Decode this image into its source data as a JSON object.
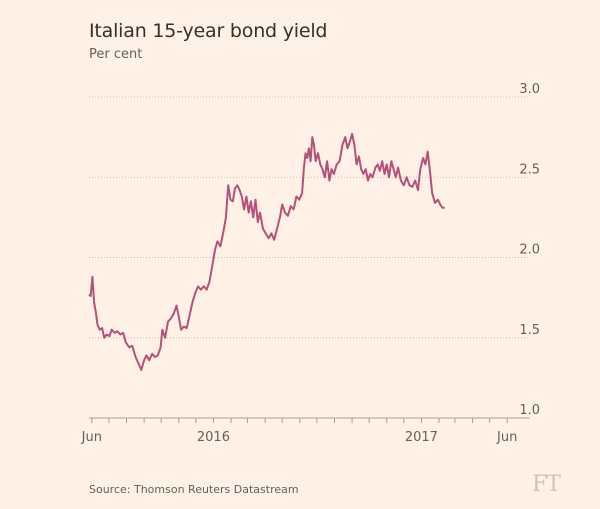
{
  "colors": {
    "background": "#fff1e5",
    "line": "#b5507a",
    "grid": "#c9bfb5",
    "text": "#33302e",
    "muted": "#66605c"
  },
  "source": "Source: Thomson Reuters Datastream",
  "logo": "FT",
  "chart_data": {
    "type": "line",
    "title": "Italian 15-year bond yield",
    "subtitle": "Per cent",
    "xlabel": "",
    "ylabel": "",
    "ylim": [
      1.0,
      3.0
    ],
    "xlim": [
      "2015-05-27",
      "2017-06-20"
    ],
    "grid": "horizontal-dotted",
    "y_ticks": [
      {
        "value": 1.0,
        "label": "1.0"
      },
      {
        "value": 1.5,
        "label": "1.5"
      },
      {
        "value": 2.0,
        "label": "2.0"
      },
      {
        "value": 2.5,
        "label": "2.5"
      },
      {
        "value": 3.0,
        "label": "3.0"
      }
    ],
    "x_tick_labels": [
      {
        "date": "2015-06-01",
        "label": "Jun"
      },
      {
        "date": "2016-01-01",
        "label": "2016"
      },
      {
        "date": "2017-01-01",
        "label": "2017"
      },
      {
        "date": "2017-06-01",
        "label": "Jun"
      }
    ],
    "x_tick_marks": [
      "2015-06-01",
      "2015-07-01",
      "2015-08-01",
      "2015-09-01",
      "2015-10-01",
      "2015-11-01",
      "2015-12-01",
      "2016-01-01",
      "2016-02-01",
      "2016-03-01",
      "2016-04-01",
      "2016-05-01",
      "2016-06-01",
      "2016-07-01",
      "2016-08-01",
      "2016-09-01",
      "2016-10-01",
      "2016-11-01",
      "2016-12-01",
      "2017-01-01",
      "2017-02-01",
      "2017-03-01",
      "2017-04-01",
      "2017-05-01",
      "2017-06-01"
    ],
    "series": [
      {
        "points": [
          [
            "2015-05-27",
            1.77
          ],
          [
            "2015-05-30",
            1.76
          ],
          [
            "2015-06-02",
            1.88
          ],
          [
            "2015-06-05",
            1.72
          ],
          [
            "2015-06-08",
            1.66
          ],
          [
            "2015-06-11",
            1.58
          ],
          [
            "2015-06-15",
            1.55
          ],
          [
            "2015-06-19",
            1.56
          ],
          [
            "2015-06-23",
            1.5
          ],
          [
            "2015-06-27",
            1.52
          ],
          [
            "2015-07-02",
            1.51
          ],
          [
            "2015-07-06",
            1.55
          ],
          [
            "2015-07-11",
            1.53
          ],
          [
            "2015-07-16",
            1.54
          ],
          [
            "2015-07-21",
            1.52
          ],
          [
            "2015-07-26",
            1.53
          ],
          [
            "2015-07-31",
            1.47
          ],
          [
            "2015-08-06",
            1.44
          ],
          [
            "2015-08-11",
            1.45
          ],
          [
            "2015-08-17",
            1.38
          ],
          [
            "2015-08-22",
            1.34
          ],
          [
            "2015-08-27",
            1.3
          ],
          [
            "2015-09-01",
            1.36
          ],
          [
            "2015-09-05",
            1.39
          ],
          [
            "2015-09-10",
            1.36
          ],
          [
            "2015-09-15",
            1.4
          ],
          [
            "2015-09-20",
            1.38
          ],
          [
            "2015-09-25",
            1.39
          ],
          [
            "2015-09-30",
            1.44
          ],
          [
            "2015-10-03",
            1.55
          ],
          [
            "2015-10-08",
            1.5
          ],
          [
            "2015-10-13",
            1.6
          ],
          [
            "2015-10-18",
            1.62
          ],
          [
            "2015-10-23",
            1.65
          ],
          [
            "2015-10-28",
            1.7
          ],
          [
            "2015-11-01",
            1.63
          ],
          [
            "2015-11-05",
            1.55
          ],
          [
            "2015-11-10",
            1.57
          ],
          [
            "2015-11-15",
            1.56
          ],
          [
            "2015-11-20",
            1.64
          ],
          [
            "2015-11-25",
            1.72
          ],
          [
            "2015-11-30",
            1.78
          ],
          [
            "2015-12-05",
            1.82
          ],
          [
            "2015-12-10",
            1.8
          ],
          [
            "2015-12-15",
            1.82
          ],
          [
            "2015-12-20",
            1.8
          ],
          [
            "2015-12-25",
            1.85
          ],
          [
            "2015-12-30",
            1.95
          ],
          [
            "2016-01-04",
            2.05
          ],
          [
            "2016-01-08",
            2.1
          ],
          [
            "2016-01-13",
            2.07
          ],
          [
            "2016-01-18",
            2.15
          ],
          [
            "2016-01-23",
            2.25
          ],
          [
            "2016-01-27",
            2.45
          ],
          [
            "2016-01-31",
            2.36
          ],
          [
            "2016-02-04",
            2.35
          ],
          [
            "2016-02-08",
            2.43
          ],
          [
            "2016-02-12",
            2.45
          ],
          [
            "2016-02-16",
            2.42
          ],
          [
            "2016-02-20",
            2.38
          ],
          [
            "2016-02-24",
            2.3
          ],
          [
            "2016-02-28",
            2.38
          ],
          [
            "2016-03-03",
            2.28
          ],
          [
            "2016-03-07",
            2.35
          ],
          [
            "2016-03-11",
            2.25
          ],
          [
            "2016-03-15",
            2.36
          ],
          [
            "2016-03-19",
            2.22
          ],
          [
            "2016-03-23",
            2.28
          ],
          [
            "2016-03-28",
            2.18
          ],
          [
            "2016-04-02",
            2.15
          ],
          [
            "2016-04-07",
            2.12
          ],
          [
            "2016-04-12",
            2.15
          ],
          [
            "2016-04-17",
            2.11
          ],
          [
            "2016-04-22",
            2.18
          ],
          [
            "2016-04-27",
            2.25
          ],
          [
            "2016-05-01",
            2.33
          ],
          [
            "2016-05-06",
            2.28
          ],
          [
            "2016-05-11",
            2.26
          ],
          [
            "2016-05-16",
            2.32
          ],
          [
            "2016-05-21",
            2.3
          ],
          [
            "2016-05-26",
            2.38
          ],
          [
            "2016-05-31",
            2.36
          ],
          [
            "2016-06-05",
            2.4
          ],
          [
            "2016-06-08",
            2.55
          ],
          [
            "2016-06-11",
            2.65
          ],
          [
            "2016-06-14",
            2.62
          ],
          [
            "2016-06-17",
            2.68
          ],
          [
            "2016-06-20",
            2.6
          ],
          [
            "2016-06-23",
            2.75
          ],
          [
            "2016-06-26",
            2.7
          ],
          [
            "2016-06-29",
            2.6
          ],
          [
            "2016-07-03",
            2.65
          ],
          [
            "2016-07-07",
            2.58
          ],
          [
            "2016-07-11",
            2.55
          ],
          [
            "2016-07-15",
            2.5
          ],
          [
            "2016-07-19",
            2.6
          ],
          [
            "2016-07-23",
            2.48
          ],
          [
            "2016-07-27",
            2.55
          ],
          [
            "2016-07-31",
            2.52
          ],
          [
            "2016-08-05",
            2.58
          ],
          [
            "2016-08-10",
            2.6
          ],
          [
            "2016-08-15",
            2.7
          ],
          [
            "2016-08-20",
            2.75
          ],
          [
            "2016-08-24",
            2.68
          ],
          [
            "2016-08-28",
            2.72
          ],
          [
            "2016-09-01",
            2.77
          ],
          [
            "2016-09-05",
            2.7
          ],
          [
            "2016-09-09",
            2.58
          ],
          [
            "2016-09-13",
            2.63
          ],
          [
            "2016-09-17",
            2.55
          ],
          [
            "2016-09-21",
            2.52
          ],
          [
            "2016-09-25",
            2.55
          ],
          [
            "2016-09-29",
            2.48
          ],
          [
            "2016-10-03",
            2.52
          ],
          [
            "2016-10-07",
            2.5
          ],
          [
            "2016-10-12",
            2.56
          ],
          [
            "2016-10-16",
            2.58
          ],
          [
            "2016-10-20",
            2.54
          ],
          [
            "2016-10-24",
            2.6
          ],
          [
            "2016-10-28",
            2.52
          ],
          [
            "2016-11-01",
            2.58
          ],
          [
            "2016-11-05",
            2.5
          ],
          [
            "2016-11-09",
            2.6
          ],
          [
            "2016-11-13",
            2.55
          ],
          [
            "2016-11-17",
            2.5
          ],
          [
            "2016-11-21",
            2.56
          ],
          [
            "2016-11-26",
            2.48
          ],
          [
            "2016-12-01",
            2.45
          ],
          [
            "2016-12-06",
            2.5
          ],
          [
            "2016-12-11",
            2.45
          ],
          [
            "2016-12-16",
            2.44
          ],
          [
            "2016-12-21",
            2.48
          ],
          [
            "2016-12-26",
            2.42
          ],
          [
            "2016-12-30",
            2.55
          ],
          [
            "2017-01-04",
            2.62
          ],
          [
            "2017-01-08",
            2.58
          ],
          [
            "2017-01-12",
            2.66
          ],
          [
            "2017-01-16",
            2.54
          ],
          [
            "2017-01-20",
            2.4
          ],
          [
            "2017-01-25",
            2.34
          ],
          [
            "2017-01-30",
            2.36
          ],
          [
            "2017-02-03",
            2.33
          ],
          [
            "2017-02-07",
            2.31
          ],
          [
            "2017-02-11",
            2.31
          ]
        ]
      }
    ]
  }
}
